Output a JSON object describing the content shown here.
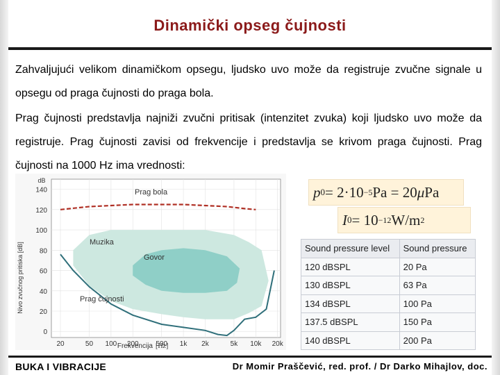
{
  "slide": {
    "title": "Dinamički opseg čujnosti",
    "paragraph1": "Zahvaljujući velikom dinamičkom opsegu, ljudsko uvo može da registruje zvučne signale u opsegu od praga čujnosti do praga bola.",
    "paragraph2": "Prag čujnosti predstavlja najniži zvučni pritisak (intenzitet zvuka) koji ljudsko uvo može da registruje. Prag čujnosti zavisi od frekvencije i predstavlja se krivom praga čujnosti. Prag čujnosti na 1000 Hz ima vrednosti:"
  },
  "formulas": {
    "p0": {
      "symbol": "p",
      "sub": "0",
      "eq": " = 2·10",
      "exp": "−5",
      "unit": " Pa = 20",
      "mu": "μ",
      "unit2": "Pa"
    },
    "i0": {
      "symbol": "I",
      "sub": "0",
      "eq": " = 10",
      "exp": "−12",
      "unit": " W/m",
      "exp2": "2"
    }
  },
  "chart_data": {
    "type": "area",
    "ylabel": "Nivo zvučnog pritiska [dB]",
    "yunit": "dB",
    "xlabel": "Frekvencija",
    "xunit": "[Hz]",
    "xscale": "log",
    "y_ticks": [
      "140",
      "120",
      "100",
      "80",
      "60",
      "40",
      "20",
      "0"
    ],
    "y_tick_values": [
      140,
      120,
      100,
      80,
      60,
      40,
      20,
      0
    ],
    "x_ticks": [
      "20",
      "50",
      "100",
      "200",
      "500",
      "1k",
      "2k",
      "5k",
      "10k",
      "20k"
    ],
    "x_tick_values": [
      20,
      50,
      100,
      200,
      500,
      1000,
      2000,
      5000,
      10000,
      20000
    ],
    "ylim": [
      -6,
      150
    ],
    "xlim": [
      15,
      22000
    ],
    "labels": {
      "pain": "Prag bola",
      "music": "Muzika",
      "speech": "Govor",
      "hearing": "Prag čujnosti"
    },
    "pain_threshold": {
      "x": [
        20,
        50,
        100,
        200,
        500,
        1000,
        2000,
        4000,
        7000,
        10000
      ],
      "y": [
        120,
        123,
        124,
        125,
        125,
        125,
        124,
        123,
        121,
        120
      ]
    },
    "hearing_threshold": {
      "x": [
        20,
        30,
        50,
        100,
        200,
        500,
        1000,
        2000,
        3000,
        4000,
        5000,
        7000,
        10000,
        14000,
        18000
      ],
      "y": [
        76,
        60,
        44,
        27,
        16,
        7,
        4,
        1,
        -3,
        -4,
        1,
        12,
        14,
        22,
        60
      ]
    },
    "music_region": {
      "x": [
        30,
        50,
        100,
        200,
        500,
        1000,
        2000,
        5000,
        8000,
        12000,
        15000,
        12000,
        8000,
        5000,
        2000,
        1000,
        500,
        200,
        100,
        50,
        30
      ],
      "y": [
        80,
        95,
        100,
        100,
        100,
        100,
        100,
        95,
        88,
        80,
        50,
        25,
        18,
        12,
        12,
        14,
        17,
        22,
        30,
        45,
        65
      ]
    },
    "speech_region": {
      "x": [
        200,
        300,
        500,
        1000,
        2000,
        4000,
        6000,
        5500,
        4000,
        2000,
        1000,
        500,
        300,
        200
      ],
      "y": [
        65,
        76,
        80,
        82,
        80,
        74,
        62,
        48,
        40,
        38,
        38,
        40,
        46,
        55
      ]
    },
    "colors": {
      "pain": "#b03025",
      "hearing": "#2f6f7a",
      "music": "#cde8e0",
      "speech": "#8fcfc7"
    }
  },
  "table": {
    "headers": [
      "Sound pressure level",
      "Sound pressure"
    ],
    "rows": [
      [
        "120 dBSPL",
        "20 Pa"
      ],
      [
        "130 dBSPL",
        "63 Pa"
      ],
      [
        "134 dBSPL",
        "100 Pa"
      ],
      [
        "137.5 dBSPL",
        "150 Pa"
      ],
      [
        "140 dBSPL",
        "200 Pa"
      ]
    ]
  },
  "footer": {
    "left": "BUKA I VIBRACIJE",
    "right": "Dr Momir Praščević, red. prof. / Dr Darko Mihajlov, doc."
  }
}
